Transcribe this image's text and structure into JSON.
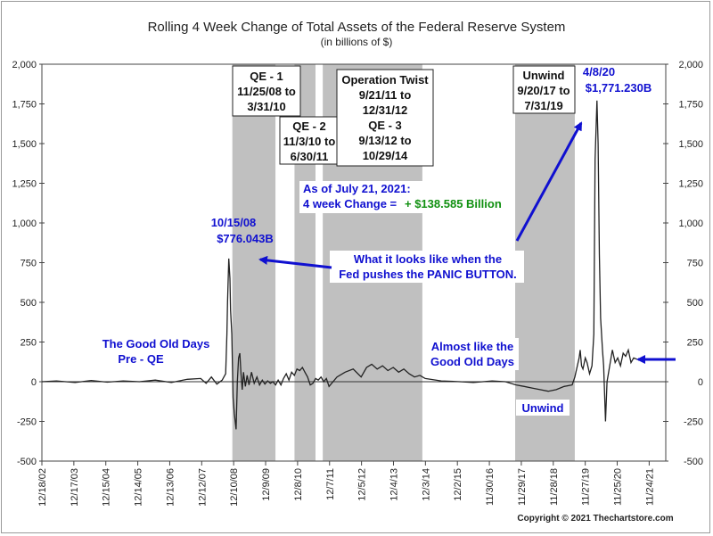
{
  "chart_data": {
    "type": "line",
    "title": "Rolling 4 Week Change of Total Assets of the Federal Reserve System",
    "subtitle": "(in billions of $)",
    "xlabel": "",
    "ylabel": "",
    "ylim": [
      -500,
      2000
    ],
    "y_ticks": [
      "2,000",
      "1,750",
      "1,500",
      "1,250",
      "1,000",
      "750",
      "500",
      "250",
      "0",
      "-250",
      "-500"
    ],
    "y_tick_values": [
      2000,
      1750,
      1500,
      1250,
      1000,
      750,
      500,
      250,
      0,
      -250,
      -500
    ],
    "x_range": [
      "2002-12-18",
      "2022-06-01"
    ],
    "x_tick_labels": [
      "12/18/02",
      "12/17/03",
      "12/15/04",
      "12/14/05",
      "12/13/06",
      "12/12/07",
      "12/10/08",
      "12/9/09",
      "12/8/10",
      "12/7/11",
      "12/5/12",
      "12/4/13",
      "12/3/14",
      "12/2/15",
      "11/30/16",
      "11/29/17",
      "11/28/18",
      "11/27/19",
      "11/25/20",
      "11/24/21"
    ],
    "x_tick_dates": [
      "2002-12-18",
      "2003-12-17",
      "2004-12-15",
      "2005-12-14",
      "2006-12-13",
      "2007-12-12",
      "2008-12-10",
      "2009-12-09",
      "2010-12-08",
      "2011-12-07",
      "2012-12-05",
      "2013-12-04",
      "2014-12-03",
      "2015-12-02",
      "2016-11-30",
      "2017-11-29",
      "2018-11-28",
      "2019-11-27",
      "2020-11-25",
      "2021-11-24"
    ],
    "shaded_periods": [
      {
        "start": "2008-11-25",
        "end": "2010-03-31"
      },
      {
        "start": "2010-11-03",
        "end": "2011-06-30"
      },
      {
        "start": "2011-09-21",
        "end": "2014-10-29"
      },
      {
        "start": "2017-09-20",
        "end": "2019-07-31"
      }
    ],
    "series": [
      {
        "x": [
          "2002-12-18",
          "2003-06-01",
          "2004-01-01",
          "2004-07-01",
          "2005-01-01",
          "2005-07-01",
          "2006-01-01",
          "2006-07-01",
          "2007-01-01",
          "2007-07-01",
          "2007-12-01",
          "2008-02-01",
          "2008-04-01",
          "2008-06-01",
          "2008-08-01",
          "2008-09-10",
          "2008-09-24",
          "2008-10-01",
          "2008-10-15",
          "2008-10-29",
          "2008-11-05",
          "2008-11-19",
          "2008-12-03",
          "2008-12-17",
          "2009-01-07",
          "2009-01-21",
          "2009-02-04",
          "2009-02-18",
          "2009-03-04",
          "2009-03-18",
          "2009-04-01",
          "2009-04-22",
          "2009-05-13",
          "2009-06-03",
          "2009-07-01",
          "2009-08-01",
          "2009-09-01",
          "2009-10-01",
          "2009-11-01",
          "2009-12-01",
          "2010-01-01",
          "2010-02-01",
          "2010-03-01",
          "2010-04-01",
          "2010-05-01",
          "2010-06-01",
          "2010-07-01",
          "2010-08-01",
          "2010-09-01",
          "2010-10-01",
          "2010-11-01",
          "2010-12-01",
          "2011-01-01",
          "2011-02-01",
          "2011-03-01",
          "2011-04-01",
          "2011-05-01",
          "2011-06-01",
          "2011-07-01",
          "2011-08-01",
          "2011-09-01",
          "2011-10-01",
          "2011-11-01",
          "2011-12-01",
          "2012-03-01",
          "2012-06-01",
          "2012-09-01",
          "2012-12-01",
          "2013-02-01",
          "2013-04-01",
          "2013-06-01",
          "2013-08-01",
          "2013-10-01",
          "2013-12-01",
          "2014-02-01",
          "2014-04-01",
          "2014-06-01",
          "2014-08-01",
          "2014-10-01",
          "2014-12-01",
          "2015-06-01",
          "2016-01-01",
          "2016-06-01",
          "2017-01-01",
          "2017-06-01",
          "2017-10-01",
          "2018-01-01",
          "2018-04-01",
          "2018-07-01",
          "2018-10-01",
          "2019-01-01",
          "2019-04-01",
          "2019-07-01",
          "2019-08-01",
          "2019-09-18",
          "2019-10-01",
          "2019-10-16",
          "2019-11-01",
          "2019-11-27",
          "2019-12-18",
          "2020-01-15",
          "2020-02-12",
          "2020-03-04",
          "2020-03-18",
          "2020-04-08",
          "2020-04-22",
          "2020-05-06",
          "2020-05-20",
          "2020-06-10",
          "2020-06-24",
          "2020-07-15",
          "2020-08-01",
          "2020-09-01",
          "2020-10-01",
          "2020-11-01",
          "2020-12-01",
          "2021-01-01",
          "2021-02-01",
          "2021-03-01",
          "2021-04-01",
          "2021-05-01",
          "2021-06-01",
          "2021-07-21"
        ],
        "values": [
          0,
          5,
          -5,
          8,
          -3,
          5,
          0,
          10,
          -5,
          15,
          20,
          -10,
          30,
          -15,
          10,
          50,
          300,
          500,
          776,
          650,
          450,
          300,
          -100,
          -200,
          -300,
          0,
          150,
          180,
          50,
          -50,
          60,
          -30,
          40,
          -20,
          60,
          -10,
          30,
          -20,
          10,
          -15,
          5,
          -10,
          0,
          -20,
          10,
          -20,
          20,
          50,
          10,
          60,
          40,
          80,
          70,
          90,
          60,
          30,
          -20,
          -10,
          20,
          10,
          30,
          0,
          20,
          -30,
          30,
          60,
          80,
          30,
          90,
          110,
          80,
          100,
          70,
          90,
          60,
          80,
          50,
          30,
          40,
          20,
          5,
          0,
          -5,
          5,
          0,
          -20,
          -30,
          -40,
          -50,
          -60,
          -50,
          -30,
          -20,
          30,
          150,
          200,
          100,
          80,
          150,
          120,
          50,
          100,
          300,
          1400,
          1771,
          1500,
          800,
          400,
          200,
          100,
          -250,
          0,
          100,
          200,
          120,
          150,
          100,
          180,
          160,
          200,
          120,
          150,
          139
        ]
      }
    ],
    "annotations": {
      "qe1_line1": "QE - 1",
      "qe1_line2": "11/25/08 to",
      "qe1_line3": "3/31/10",
      "qe2_line1": "QE - 2",
      "qe2_line2": "11/3/10 to",
      "qe2_line3": "6/30/11",
      "twist_line1": "Operation Twist",
      "twist_line2": "9/21/11 to",
      "twist_line3": "12/31/12",
      "twist_line4": "QE - 3",
      "twist_line5": "9/13/12 to",
      "twist_line6": "10/29/14",
      "unwind_box_line1": "Unwind",
      "unwind_box_line2": "9/20/17 to",
      "unwind_box_line3": "7/31/19",
      "peak2020_line1": "4/8/20",
      "peak2020_line2": "$1,771.230B",
      "peak2008_line1": "10/15/08",
      "peak2008_line2": "$776.043B",
      "asof_line1": "As of July 21, 2021:",
      "asof_line2_prefix": "4 week Change =",
      "asof_line2_value": "+ $138.585 Billion",
      "panic_line1": "What it looks like when the",
      "panic_line2": "Fed pushes the PANIC BUTTON.",
      "good_old_line1": "The Good Old Days",
      "good_old_line2": "Pre - QE",
      "almost_line1": "Almost like the",
      "almost_line2": "Good Old Days",
      "unwind_label": "Unwind"
    },
    "copyright": "Copyright © 2021 Thechartstore.com",
    "colors": {
      "line": "#222222",
      "shade": "#c0c0c0",
      "annotation": "#1010d0",
      "positive": "#109010"
    },
    "grid": false,
    "legend": "none"
  }
}
